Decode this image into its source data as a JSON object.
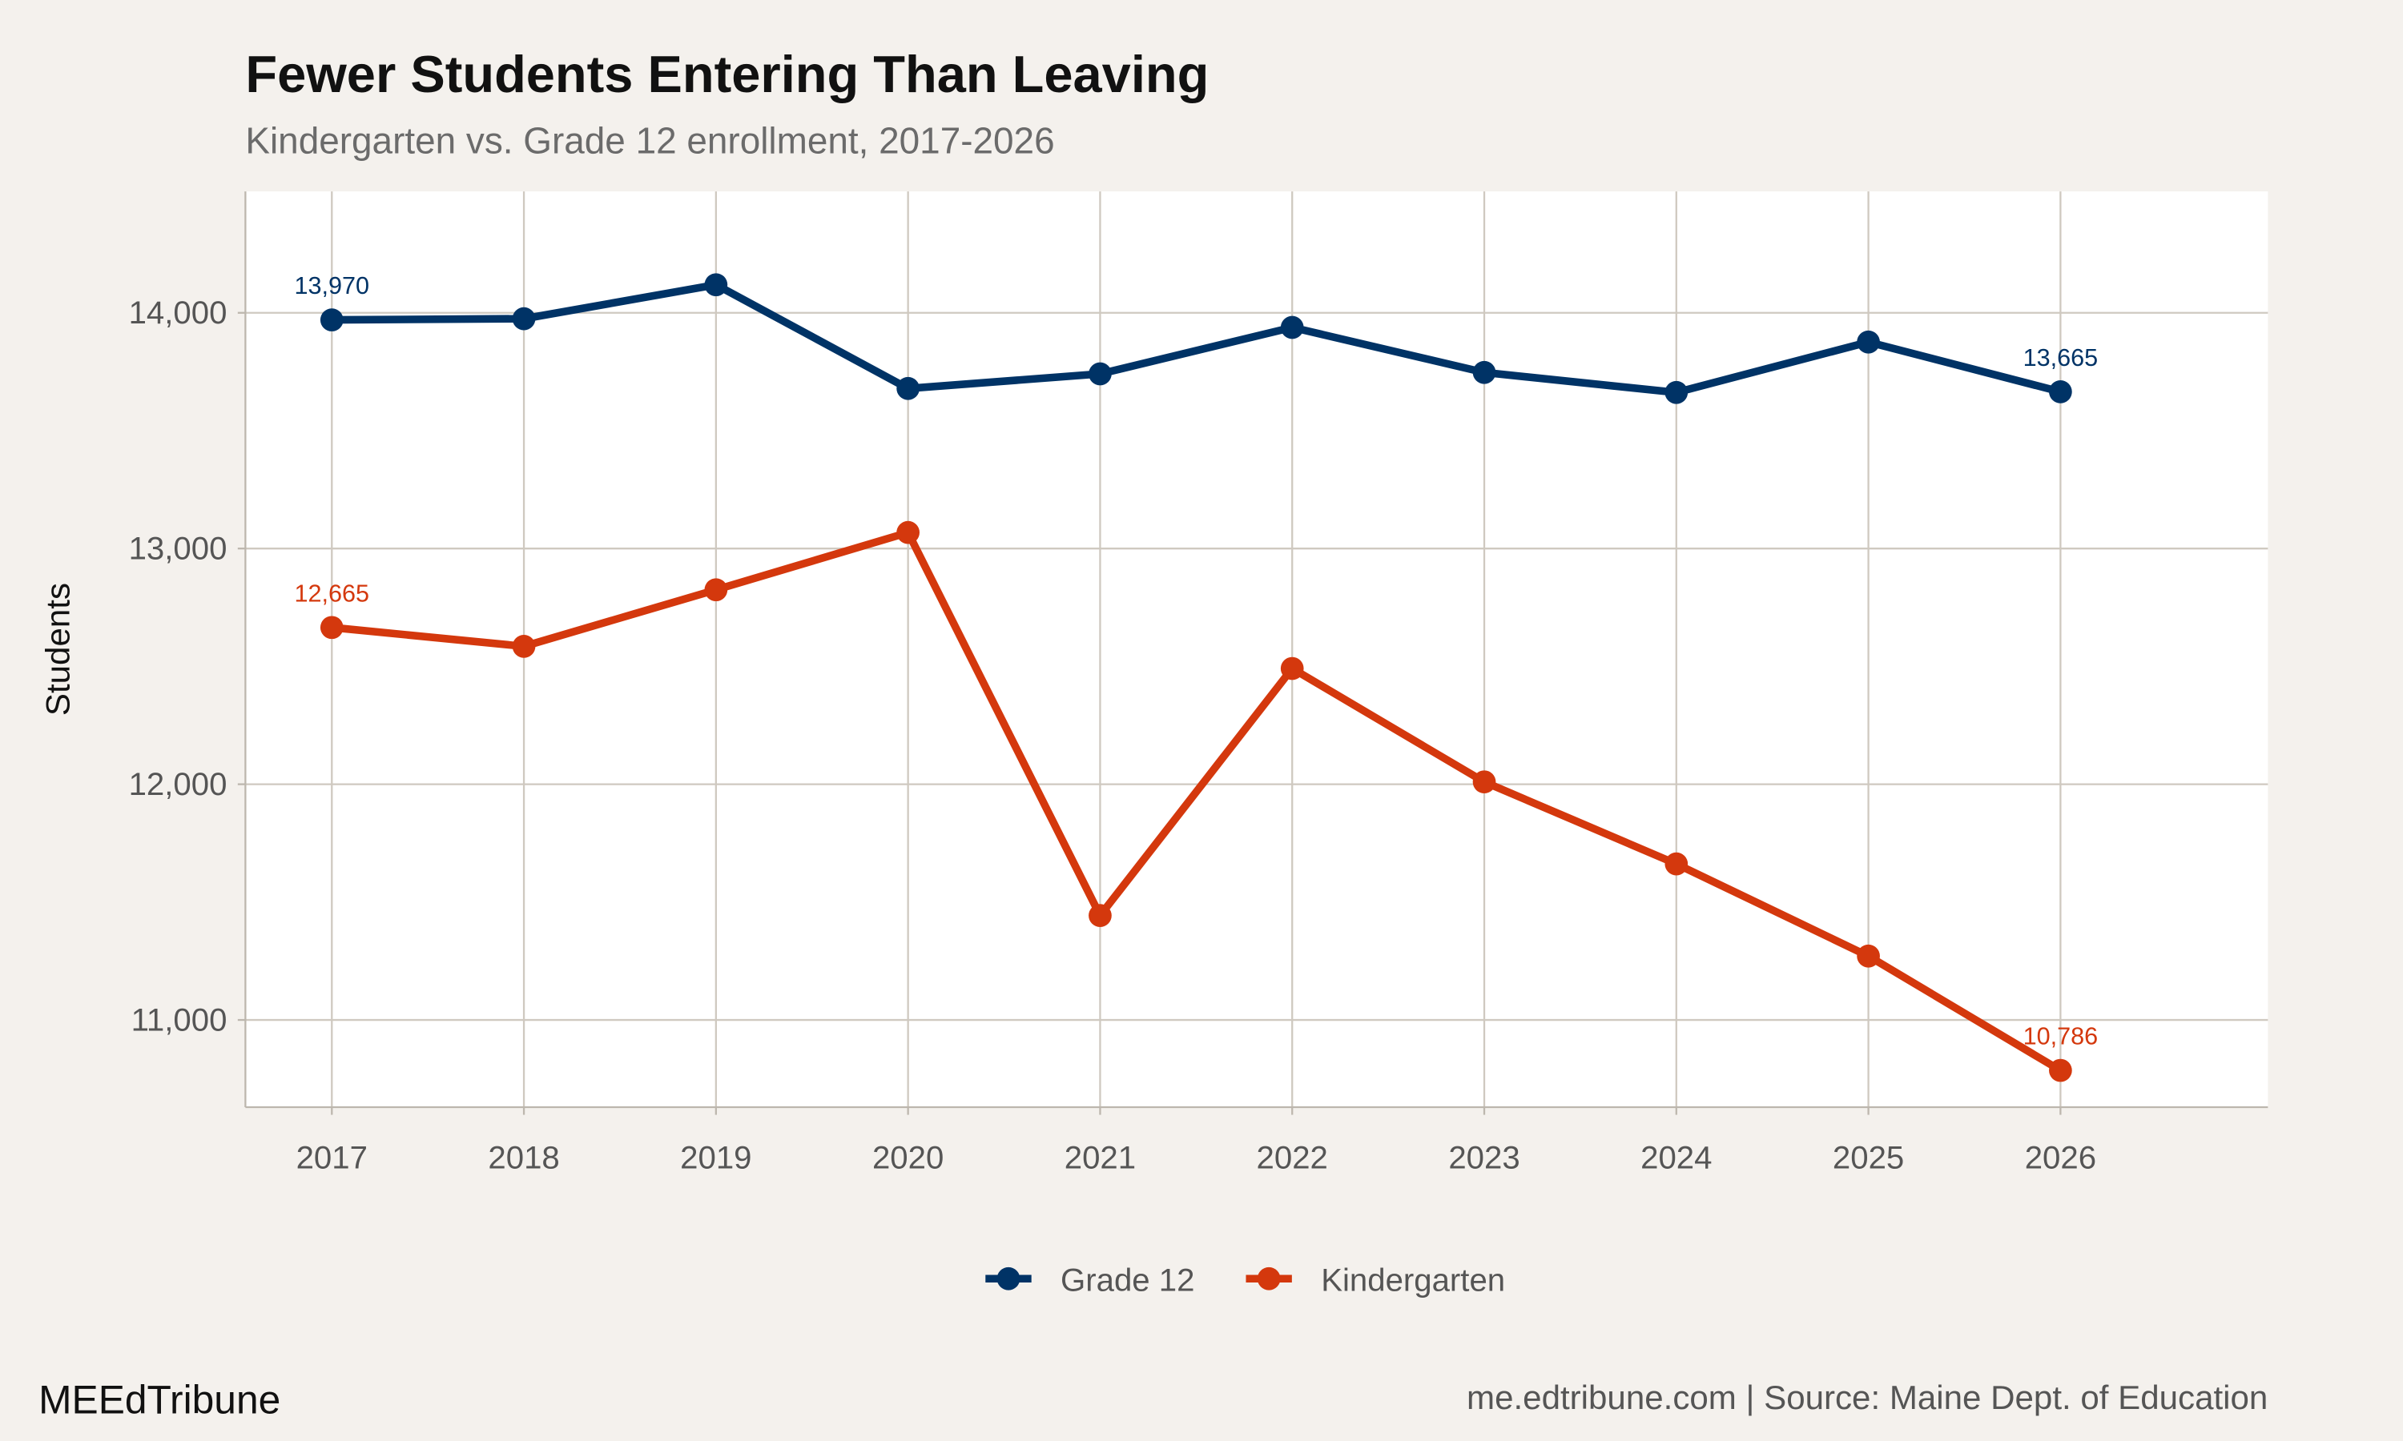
{
  "title": "Fewer Students Entering Than Leaving",
  "subtitle": "Kindergarten vs. Grade 12 enrollment, 2017-2026",
  "footer": {
    "brand": "MEEdTribune",
    "source": "me.edtribune.com | Source: Maine Dept. of Education"
  },
  "chart_data": {
    "type": "line",
    "title": "Fewer Students Entering Than Leaving",
    "subtitle": "Kindergarten vs. Grade 12 enrollment, 2017-2026",
    "xlabel": "",
    "ylabel": "Students",
    "x": [
      2017,
      2018,
      2019,
      2020,
      2021,
      2022,
      2023,
      2024,
      2025,
      2026
    ],
    "x_tick_labels": [
      "2017",
      "2018",
      "2019",
      "2020",
      "2021",
      "2022",
      "2023",
      "2024",
      "2025",
      "2026"
    ],
    "y_ticks": [
      11000,
      12000,
      13000,
      14000
    ],
    "y_tick_labels": [
      "11,000",
      "12,000",
      "13,000",
      "14,000"
    ],
    "xlim": [
      2016.55,
      2027.08
    ],
    "ylim": [
      10630,
      14515
    ],
    "grid": true,
    "legend": "bottom",
    "series": [
      {
        "name": "Grade 12",
        "color": "#003366",
        "values": [
          13970,
          13975,
          14119,
          13679,
          13741,
          13938,
          13747,
          13662,
          13876,
          13665
        ],
        "labels": [
          {
            "x": 2017,
            "text": "13,970"
          },
          {
            "x": 2026,
            "text": "13,665"
          }
        ]
      },
      {
        "name": "Kindergarten",
        "color": "#d4380d",
        "values": [
          12665,
          12585,
          12825,
          13068,
          11443,
          12491,
          12010,
          11662,
          11271,
          10786
        ],
        "labels": [
          {
            "x": 2017,
            "text": "12,665"
          },
          {
            "x": 2026,
            "text": "10,786"
          }
        ]
      }
    ]
  }
}
